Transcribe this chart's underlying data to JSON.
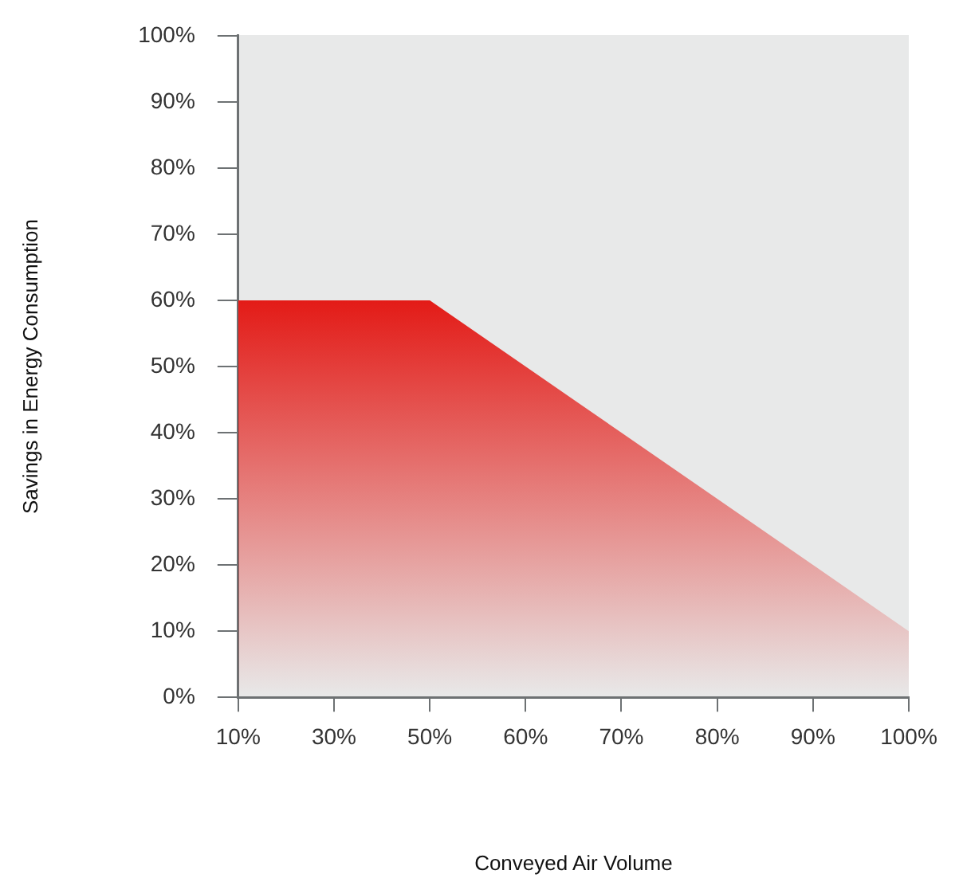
{
  "chart_data": {
    "type": "area",
    "xlabel": "Conveyed Air Volume",
    "ylabel": "Savings in Energy Consumption",
    "categories": [
      "10%",
      "30%",
      "50%",
      "60%",
      "70%",
      "80%",
      "90%",
      "100%"
    ],
    "values": [
      60,
      60,
      60,
      50,
      40,
      30,
      20,
      10
    ],
    "color": "#e31b17",
    "ylim": [
      0,
      100
    ],
    "yticks": [
      {
        "value": 0,
        "label": "0%"
      },
      {
        "value": 10,
        "label": "10%"
      },
      {
        "value": 20,
        "label": "20%"
      },
      {
        "value": 30,
        "label": "30%"
      },
      {
        "value": 40,
        "label": "40%"
      },
      {
        "value": 50,
        "label": "50%"
      },
      {
        "value": 60,
        "label": "60%"
      },
      {
        "value": 70,
        "label": "70%"
      },
      {
        "value": 80,
        "label": "80%"
      },
      {
        "value": 90,
        "label": "90%"
      },
      {
        "value": 100,
        "label": "100%"
      }
    ],
    "grid": false,
    "legend": false
  }
}
